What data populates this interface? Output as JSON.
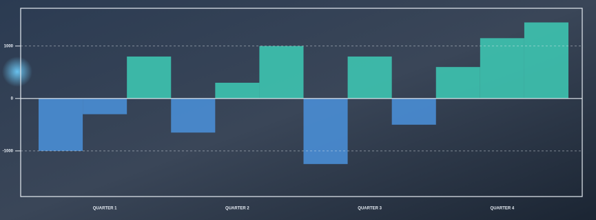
{
  "chart_data": {
    "type": "bar",
    "categories": [
      null,
      "QUARTER 1",
      null,
      null,
      "QUARTER 2",
      null,
      null,
      "QUARTER 3",
      null,
      null,
      "QUARTER 4",
      null
    ],
    "values": [
      -1000,
      -300,
      800,
      -650,
      300,
      1000,
      -1250,
      800,
      -500,
      600,
      1150,
      1450
    ],
    "color_positive": "#3ec7b3",
    "color_negative": "#4a8fd8",
    "ylim": [
      -1870,
      1720
    ],
    "yticks": [
      -1000,
      0,
      1000
    ],
    "grid": true
  }
}
